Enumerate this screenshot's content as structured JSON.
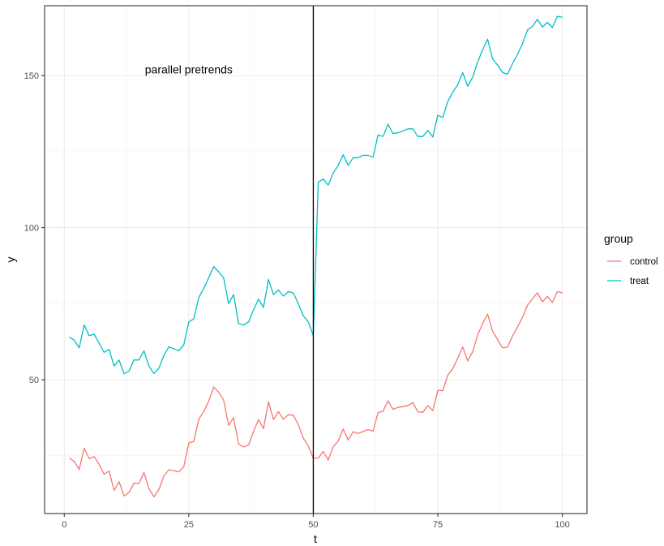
{
  "chart_data": {
    "type": "line",
    "title": "",
    "xlabel": "t",
    "ylabel": "y",
    "xlim": [
      -3.95,
      104.95
    ],
    "ylim": [
      6.0,
      173.0
    ],
    "x_ticks": [
      0,
      25,
      50,
      75,
      100
    ],
    "y_ticks": [
      50,
      100,
      150
    ],
    "x_minor_ticks": [
      12.5,
      37.5,
      62.5,
      87.5
    ],
    "y_minor_ticks": [
      25,
      75,
      125
    ],
    "grid": true,
    "legend": {
      "title": "group",
      "position": "right"
    },
    "vline": {
      "x": 50,
      "color": "#000000"
    },
    "annotation": {
      "text": "parallel pretrends",
      "x": 25,
      "y": 152
    },
    "series": [
      {
        "name": "control",
        "color": "#F8766D",
        "x": [
          1,
          2,
          3,
          4,
          5,
          6,
          7,
          8,
          9,
          10,
          11,
          12,
          13,
          14,
          15,
          16,
          17,
          18,
          19,
          20,
          21,
          22,
          23,
          24,
          25,
          26,
          27,
          28,
          29,
          30,
          31,
          32,
          33,
          34,
          35,
          36,
          37,
          38,
          39,
          40,
          41,
          42,
          43,
          44,
          45,
          46,
          47,
          48,
          49,
          50,
          51,
          52,
          53,
          54,
          55,
          56,
          57,
          58,
          59,
          60,
          61,
          62,
          63,
          64,
          65,
          66,
          67,
          68,
          69,
          70,
          71,
          72,
          73,
          74,
          75,
          76,
          77,
          78,
          79,
          80,
          81,
          82,
          83,
          84,
          85,
          86,
          87,
          88,
          89,
          90,
          91,
          92,
          93,
          94,
          95,
          96,
          97,
          98,
          99,
          100
        ],
        "values": [
          24.3,
          23.1,
          20.5,
          27.5,
          24.1,
          24.7,
          22.2,
          18.9,
          20.0,
          13.6,
          16.5,
          11.8,
          12.9,
          16.0,
          15.9,
          19.5,
          14.2,
          11.5,
          13.9,
          18.3,
          20.4,
          20.1,
          19.7,
          21.4,
          29.2,
          29.7,
          37.0,
          39.5,
          42.9,
          47.6,
          45.9,
          43.3,
          35.0,
          37.5,
          28.9,
          27.9,
          28.5,
          33.0,
          36.9,
          33.9,
          42.8,
          36.9,
          39.5,
          37.0,
          38.5,
          38.3,
          35.2,
          30.8,
          28.2,
          24.2,
          24.2,
          26.4,
          23.6,
          28.0,
          29.8,
          33.8,
          30.2,
          32.9,
          32.3,
          33.0,
          33.6,
          33.1,
          39.2,
          39.6,
          43.1,
          40.3,
          40.9,
          41.2,
          41.5,
          42.5,
          39.4,
          39.3,
          41.5,
          39.8,
          46.5,
          46.4,
          51.5,
          53.6,
          57.1,
          60.8,
          56.2,
          59.2,
          64.7,
          68.5,
          71.6,
          66.0,
          63.2,
          60.5,
          60.7,
          64.4,
          67.3,
          70.5,
          74.5,
          76.6,
          78.6,
          75.6,
          77.4,
          75.4,
          79.0,
          78.6
        ]
      },
      {
        "name": "treat",
        "color": "#00BFC4",
        "x": [
          1,
          2,
          3,
          4,
          5,
          6,
          7,
          8,
          9,
          10,
          11,
          12,
          13,
          14,
          15,
          16,
          17,
          18,
          19,
          20,
          21,
          22,
          23,
          24,
          25,
          26,
          27,
          28,
          29,
          30,
          31,
          32,
          33,
          34,
          35,
          36,
          37,
          38,
          39,
          40,
          41,
          42,
          43,
          44,
          45,
          46,
          47,
          48,
          49,
          50,
          51,
          52,
          53,
          54,
          55,
          56,
          57,
          58,
          59,
          60,
          61,
          62,
          63,
          64,
          65,
          66,
          67,
          68,
          69,
          70,
          71,
          72,
          73,
          74,
          75,
          76,
          77,
          78,
          79,
          80,
          81,
          82,
          83,
          84,
          85,
          86,
          87,
          88,
          89,
          90,
          91,
          92,
          93,
          94,
          95,
          96,
          97,
          98,
          99,
          100
        ],
        "values": [
          64.0,
          63.0,
          60.5,
          68.0,
          64.5,
          65.0,
          62.0,
          59.0,
          60.0,
          54.5,
          56.5,
          52.0,
          52.8,
          56.5,
          56.5,
          59.5,
          54.5,
          52.0,
          53.8,
          58.0,
          60.8,
          60.2,
          59.5,
          61.5,
          69.0,
          70.0,
          77.0,
          80.0,
          83.5,
          87.2,
          85.5,
          83.5,
          75.0,
          78.0,
          68.5,
          68.0,
          69.0,
          73.0,
          76.5,
          73.8,
          83.0,
          78.0,
          79.5,
          77.5,
          79.0,
          78.5,
          75.0,
          71.0,
          69.0,
          64.5,
          115.0,
          116.0,
          114.0,
          118.0,
          120.5,
          124.0,
          120.5,
          123.0,
          123.0,
          123.8,
          123.8,
          123.2,
          130.5,
          130.0,
          134.0,
          131.0,
          131.2,
          131.8,
          132.5,
          132.5,
          130.0,
          130.0,
          132.0,
          129.8,
          137.0,
          136.2,
          141.5,
          144.5,
          147.0,
          151.0,
          146.5,
          149.5,
          154.5,
          158.5,
          162.0,
          155.5,
          153.5,
          151.0,
          150.5,
          154.0,
          157.0,
          160.5,
          165.0,
          166.2,
          168.5,
          166.0,
          167.5,
          165.8,
          169.5,
          169.2
        ]
      }
    ]
  }
}
